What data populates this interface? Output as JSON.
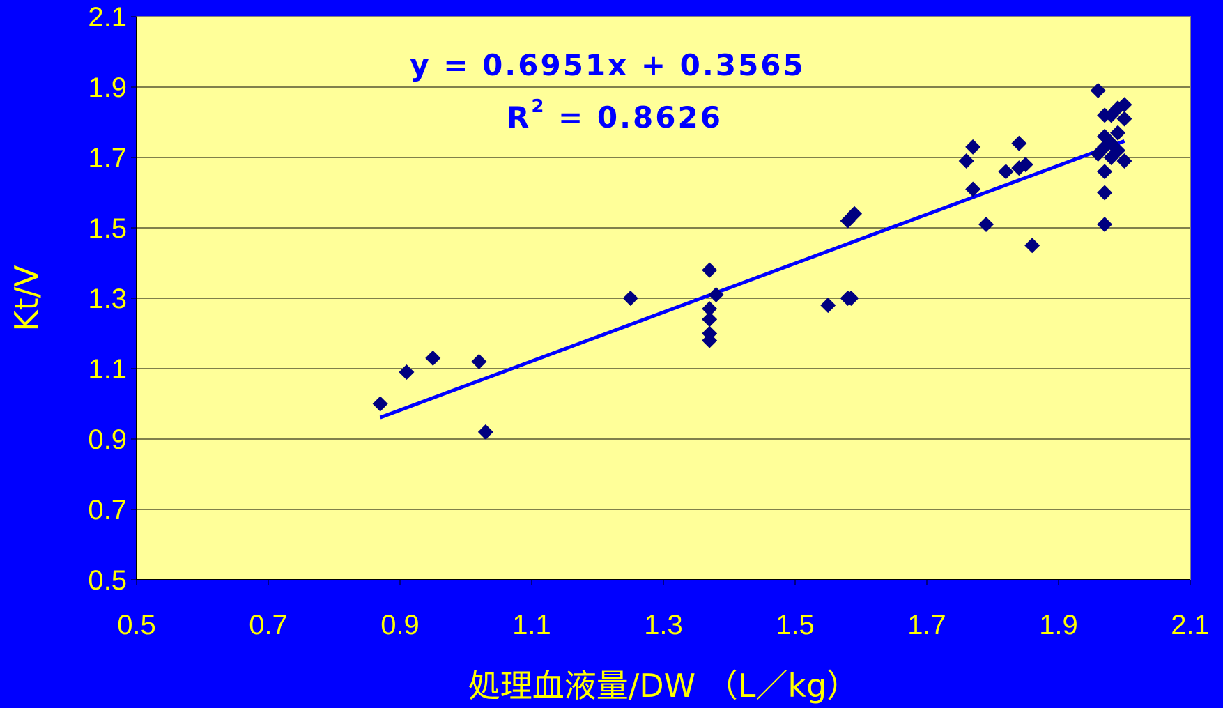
{
  "chart_data": {
    "type": "scatter",
    "xlabel": "処理血液量/DW （L／kg）",
    "ylabel": "Kt/V",
    "xlim": [
      0.5,
      2.1
    ],
    "ylim": [
      0.5,
      2.1
    ],
    "x_ticks": [
      "0.5",
      "0.7",
      "0.9",
      "1.1",
      "1.3",
      "1.5",
      "1.7",
      "1.9",
      "2.1"
    ],
    "y_ticks": [
      "0.5",
      "0.7",
      "0.9",
      "1.1",
      "1.3",
      "1.5",
      "1.7",
      "1.9",
      "2.1"
    ],
    "grid": "horizontal",
    "plot_background": "#ffff99",
    "page_background": "#0000ff",
    "point_color": "#000080",
    "trendline_color": "#0000ff",
    "trendline": {
      "slope": 0.6951,
      "intercept": 0.3565,
      "x_range": [
        0.87,
        2.0
      ]
    },
    "annotation": {
      "equation": "y = 0.6951x + 0.3565",
      "r2_prefix": "R",
      "r2_sup": "2",
      "r2_value": " = 0.8626"
    },
    "points": [
      {
        "x": 0.87,
        "y": 1.0
      },
      {
        "x": 0.91,
        "y": 1.09
      },
      {
        "x": 0.95,
        "y": 1.13
      },
      {
        "x": 1.02,
        "y": 1.12
      },
      {
        "x": 1.03,
        "y": 0.92
      },
      {
        "x": 1.25,
        "y": 1.3
      },
      {
        "x": 1.37,
        "y": 1.38
      },
      {
        "x": 1.38,
        "y": 1.31
      },
      {
        "x": 1.37,
        "y": 1.27
      },
      {
        "x": 1.37,
        "y": 1.24
      },
      {
        "x": 1.37,
        "y": 1.2
      },
      {
        "x": 1.37,
        "y": 1.18
      },
      {
        "x": 1.55,
        "y": 1.28
      },
      {
        "x": 1.58,
        "y": 1.3
      },
      {
        "x": 1.585,
        "y": 1.3
      },
      {
        "x": 1.58,
        "y": 1.52
      },
      {
        "x": 1.59,
        "y": 1.54
      },
      {
        "x": 1.76,
        "y": 1.69
      },
      {
        "x": 1.77,
        "y": 1.73
      },
      {
        "x": 1.77,
        "y": 1.61
      },
      {
        "x": 1.79,
        "y": 1.51
      },
      {
        "x": 1.82,
        "y": 1.66
      },
      {
        "x": 1.84,
        "y": 1.74
      },
      {
        "x": 1.84,
        "y": 1.67
      },
      {
        "x": 1.85,
        "y": 1.68
      },
      {
        "x": 1.86,
        "y": 1.45
      },
      {
        "x": 1.96,
        "y": 1.89
      },
      {
        "x": 1.97,
        "y": 1.82
      },
      {
        "x": 1.98,
        "y": 1.82
      },
      {
        "x": 1.99,
        "y": 1.84
      },
      {
        "x": 2.0,
        "y": 1.85
      },
      {
        "x": 2.0,
        "y": 1.81
      },
      {
        "x": 1.97,
        "y": 1.76
      },
      {
        "x": 1.99,
        "y": 1.77
      },
      {
        "x": 1.97,
        "y": 1.73
      },
      {
        "x": 1.98,
        "y": 1.74
      },
      {
        "x": 1.96,
        "y": 1.71
      },
      {
        "x": 1.98,
        "y": 1.7
      },
      {
        "x": 2.0,
        "y": 1.69
      },
      {
        "x": 1.97,
        "y": 1.66
      },
      {
        "x": 1.97,
        "y": 1.6
      },
      {
        "x": 1.97,
        "y": 1.51
      },
      {
        "x": 1.99,
        "y": 1.72
      }
    ]
  }
}
